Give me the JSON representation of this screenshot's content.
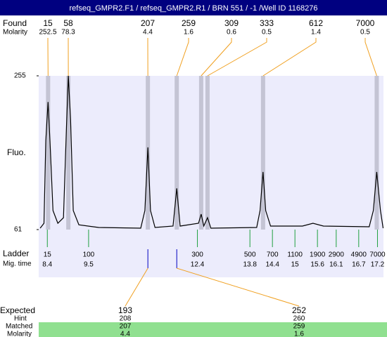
{
  "title": "refseq_GMPR2.F1 / refseq_GMPR2.R1 / BRN 551 / -1 /Well ID 1168276",
  "found": {
    "label": "Found",
    "sublabel": "Molarity",
    "peaks": [
      {
        "size": 15,
        "molarity": 252.5,
        "time": 8.42
      },
      {
        "size": 58,
        "molarity": 78.3,
        "time": 8.96
      },
      {
        "size": 207,
        "molarity": 4.4,
        "time": 11.08
      },
      {
        "size": 259,
        "molarity": 1.6,
        "time": 11.85
      },
      {
        "size": 309,
        "molarity": 0.6,
        "time": 12.5
      },
      {
        "size": 333,
        "molarity": 0.5,
        "time": 12.67
      },
      {
        "size": 612,
        "molarity": 1.4,
        "time": 14.15
      },
      {
        "size": 7000,
        "molarity": 0.5,
        "time": 17.18
      }
    ]
  },
  "chart_data": {
    "type": "line",
    "ylabel": "Fluo.",
    "ylim": [
      61,
      255
    ],
    "yticks": [
      61,
      255
    ],
    "xlim": [
      8.17,
      17.36
    ],
    "color": "#000000",
    "x": [
      8.21,
      8.31,
      8.36,
      8.42,
      8.47,
      8.55,
      8.68,
      8.83,
      8.91,
      8.96,
      9.02,
      9.09,
      9.24,
      9.77,
      10.89,
      11.0,
      11.08,
      11.15,
      11.27,
      11.75,
      11.85,
      11.94,
      12.43,
      12.5,
      12.57,
      12.67,
      12.76,
      13.98,
      14.07,
      14.15,
      14.22,
      14.35,
      15.2,
      15.48,
      15.76,
      16.98,
      17.09,
      17.18,
      17.28,
      17.35
    ],
    "values": [
      62.8,
      69,
      173.5,
      222,
      173.5,
      85,
      69,
      76,
      191,
      255,
      200,
      85,
      67,
      63.7,
      62.8,
      85,
      164.7,
      85,
      63.7,
      65.4,
      113,
      65.4,
      69,
      80.5,
      65.4,
      76,
      62.8,
      63.7,
      85,
      133.7,
      85,
      65.4,
      65.4,
      69,
      65.4,
      64.5,
      85,
      133.7,
      85,
      62.8
    ]
  },
  "ladder": {
    "label": "Ladder",
    "sublabel": "Mig. time",
    "sizes": [
      15,
      100,
      300,
      500,
      700,
      1100,
      1900,
      2900,
      4900,
      7000
    ],
    "times": [
      8.4,
      9.5,
      12.4,
      13.8,
      14.4,
      15,
      15.6,
      16.1,
      16.7,
      17.2
    ]
  },
  "expected": {
    "labels": [
      "Expected",
      "Hint",
      "Matched",
      "Molarity"
    ],
    "rows": [
      {
        "expected": 193,
        "hint": 208,
        "matched": 207,
        "molarity": 4.4,
        "time": 11.08
      },
      {
        "expected": 252,
        "hint": 260,
        "matched": 259,
        "molarity": 1.6,
        "time": 11.85
      }
    ]
  }
}
